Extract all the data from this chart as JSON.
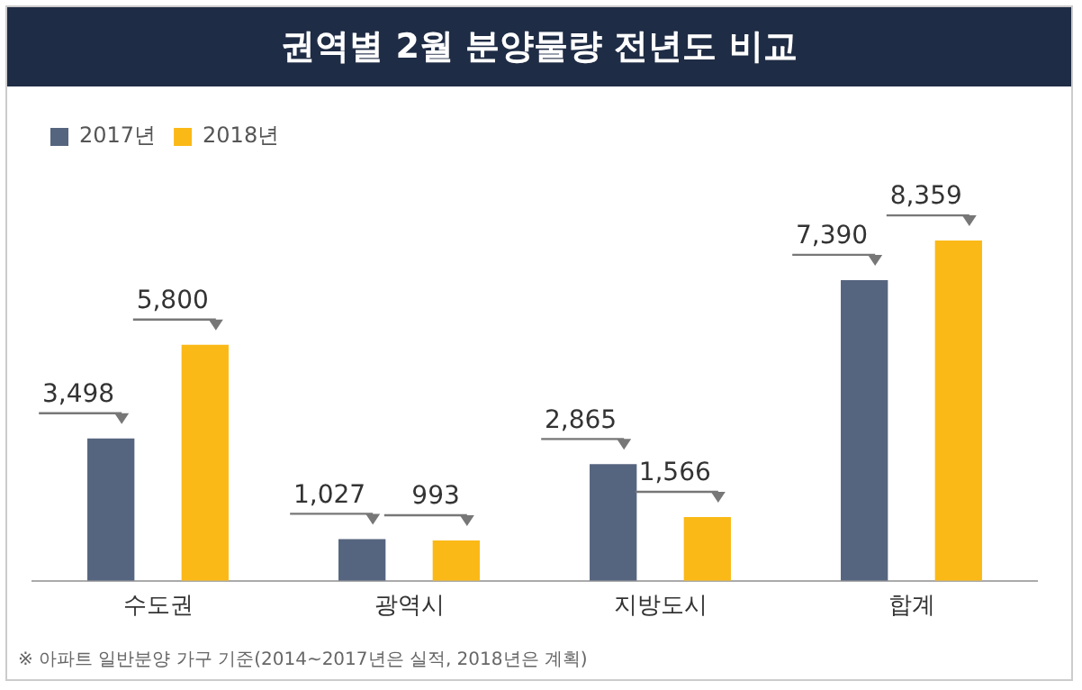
{
  "chart_data": {
    "type": "bar",
    "title": "권역별 2월 분양물량 전년도 비교",
    "categories": [
      "수도권",
      "광역시",
      "지방도시",
      "합계"
    ],
    "series": [
      {
        "name": "2017년",
        "color": "#56657f",
        "values": [
          3498,
          1027,
          2865,
          7390
        ],
        "value_labels": [
          "3,498",
          "1,027",
          "2,865",
          "7,390"
        ]
      },
      {
        "name": "2018년",
        "color": "#fbb917",
        "values": [
          5800,
          993,
          1566,
          8359
        ],
        "value_labels": [
          "5,800",
          "993",
          "1,566",
          "8,359"
        ]
      }
    ],
    "legend": "top left",
    "grid": false,
    "annotations": [
      "※ 아파트 일반분양 가구 기준(2014~2017년은 실적, 2018년은 계획)"
    ]
  }
}
